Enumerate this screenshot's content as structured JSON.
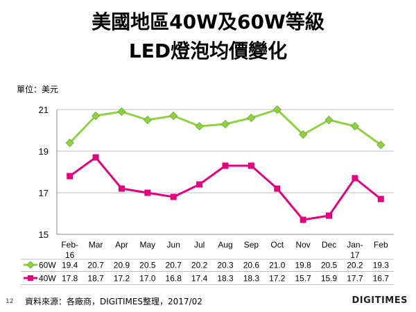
{
  "title_line1": "美國地區40W及60W等級",
  "title_line2": "LED燈泡均價變化",
  "unit_label": "單位：美元",
  "source": "資料來源：各廠商，DIGITIMES整理，2017/02",
  "page_number": "12",
  "brand": "DIGITIMES",
  "chart_data": {
    "type": "line",
    "title": "美國地區40W及60W等級 LED燈泡均價變化",
    "ylabel": "單位：美元",
    "ylim": [
      15,
      21
    ],
    "yticks": [
      15,
      17,
      19,
      21
    ],
    "grid": true,
    "categories": [
      {
        "line1": "Feb-",
        "line2": "16"
      },
      {
        "line1": "Mar",
        "line2": ""
      },
      {
        "line1": "Apr",
        "line2": ""
      },
      {
        "line1": "May",
        "line2": ""
      },
      {
        "line1": "Jun",
        "line2": ""
      },
      {
        "line1": "Jul",
        "line2": ""
      },
      {
        "line1": "Aug",
        "line2": ""
      },
      {
        "line1": "Sep",
        "line2": ""
      },
      {
        "line1": "Oct",
        "line2": ""
      },
      {
        "line1": "Nov",
        "line2": ""
      },
      {
        "line1": "Dec",
        "line2": ""
      },
      {
        "line1": "Jan-",
        "line2": "17"
      },
      {
        "line1": "Feb",
        "line2": ""
      }
    ],
    "series": [
      {
        "name": "60W",
        "color": "#8fd13f",
        "marker": "diamond",
        "values": [
          19.4,
          20.7,
          20.9,
          20.5,
          20.7,
          20.2,
          20.3,
          20.6,
          21.0,
          19.8,
          20.5,
          20.2,
          19.3
        ]
      },
      {
        "name": "40W",
        "color": "#e6007e",
        "marker": "square",
        "values": [
          17.8,
          18.7,
          17.2,
          17.0,
          16.8,
          17.4,
          18.3,
          18.3,
          17.2,
          15.7,
          15.9,
          17.7,
          16.7
        ]
      }
    ]
  }
}
